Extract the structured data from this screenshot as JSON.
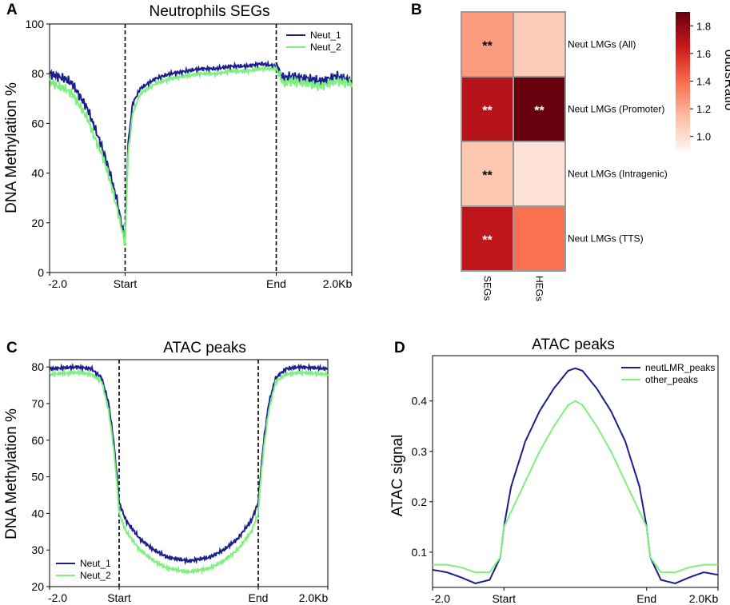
{
  "panel_letters": {
    "A": "A",
    "B": "B",
    "C": "C",
    "D": "D"
  },
  "chart_data": [
    {
      "id": "A",
      "type": "line",
      "title": "Neutrophils SEGs",
      "xlabel": "",
      "ylabel": "DNA Methylation %",
      "xlim": [
        0,
        400
      ],
      "ylim": [
        0,
        100
      ],
      "yticks": [
        0,
        20,
        40,
        60,
        80,
        100
      ],
      "xticks": [
        {
          "x": 0,
          "label": "-2.0"
        },
        {
          "x": 100,
          "label": "Start"
        },
        {
          "x": 300,
          "label": "End"
        },
        {
          "x": 400,
          "label": "2.0Kb"
        }
      ],
      "vlines": [
        100,
        300
      ],
      "legend": "top-right",
      "series": [
        {
          "name": "Neut_1",
          "color": "#1a1f8c",
          "x": [
            0,
            10,
            20,
            30,
            40,
            50,
            60,
            70,
            80,
            90,
            98,
            100,
            104,
            110,
            120,
            140,
            160,
            180,
            200,
            220,
            240,
            260,
            280,
            300,
            310,
            320,
            340,
            360,
            380,
            400
          ],
          "values": [
            80,
            79,
            78,
            76,
            71,
            66,
            58,
            50,
            40,
            28,
            15,
            13,
            52,
            68,
            74,
            78,
            80,
            81,
            82,
            82,
            83,
            83,
            84,
            83,
            78,
            79,
            78,
            77,
            79,
            77
          ]
        },
        {
          "name": "Neut_2",
          "color": "#7ef07e",
          "x": [
            0,
            10,
            20,
            30,
            40,
            50,
            60,
            70,
            80,
            90,
            98,
            100,
            104,
            110,
            120,
            140,
            160,
            180,
            200,
            220,
            240,
            260,
            280,
            300,
            310,
            320,
            340,
            360,
            380,
            400
          ],
          "values": [
            77,
            75,
            74,
            72,
            67,
            62,
            54,
            47,
            37,
            25,
            14,
            12,
            48,
            64,
            72,
            76,
            78,
            79,
            80,
            80,
            81,
            81,
            82,
            82,
            76,
            77,
            76,
            75,
            77,
            76
          ]
        }
      ]
    },
    {
      "id": "B",
      "type": "heatmap",
      "rows": [
        "Neut LMGs (All)",
        "Neut LMGs (Promoter)",
        "Neut LMGs (Intragenic)",
        "Neut LMGs (TTS)"
      ],
      "columns": [
        "SEGs",
        "HEGs"
      ],
      "values": [
        [
          1.25,
          1.08
        ],
        [
          1.7,
          1.9
        ],
        [
          1.1,
          0.98
        ],
        [
          1.68,
          1.38
        ]
      ],
      "annotations": [
        [
          "**",
          ""
        ],
        [
          "**",
          "**"
        ],
        [
          "**",
          ""
        ],
        [
          "**",
          ""
        ]
      ],
      "colorbar": {
        "label": "oddsRatio",
        "min": 0.9,
        "max": 1.9,
        "ticks": [
          1.0,
          1.2,
          1.4,
          1.6,
          1.8
        ]
      }
    },
    {
      "id": "C",
      "type": "line",
      "title": "ATAC peaks",
      "xlabel": "",
      "ylabel": "DNA Methylation %",
      "xlim": [
        0,
        400
      ],
      "ylim": [
        20,
        82
      ],
      "yticks": [
        20,
        30,
        40,
        50,
        60,
        70,
        80
      ],
      "xticks": [
        {
          "x": 0,
          "label": "-2.0"
        },
        {
          "x": 100,
          "label": "Start"
        },
        {
          "x": 300,
          "label": "End"
        },
        {
          "x": 400,
          "label": "2.0Kb"
        }
      ],
      "vlines": [
        100,
        300
      ],
      "legend": "bottom-left",
      "series": [
        {
          "name": "Neut_1",
          "color": "#1a1f8c",
          "x": [
            0,
            40,
            60,
            75,
            85,
            92,
            97,
            100,
            110,
            130,
            150,
            170,
            200,
            230,
            250,
            270,
            290,
            300,
            303,
            308,
            315,
            325,
            340,
            360,
            400
          ],
          "values": [
            79.5,
            80,
            79.5,
            77,
            70,
            60,
            50,
            43,
            38,
            33,
            30,
            28,
            27,
            28,
            30,
            33,
            38,
            43,
            50,
            60,
            70,
            77,
            79.5,
            80,
            79.5
          ]
        },
        {
          "name": "Neut_2",
          "color": "#7ef07e",
          "x": [
            0,
            40,
            60,
            75,
            85,
            92,
            97,
            100,
            110,
            130,
            150,
            170,
            200,
            230,
            250,
            270,
            290,
            300,
            303,
            308,
            315,
            325,
            340,
            360,
            400
          ],
          "values": [
            78,
            78.5,
            78,
            76,
            68,
            58,
            48,
            40,
            35,
            30,
            27,
            25,
            24,
            25,
            27,
            30,
            35,
            40,
            48,
            58,
            68,
            76,
            78,
            78.5,
            78
          ]
        }
      ]
    },
    {
      "id": "D",
      "type": "line",
      "title": "ATAC peaks",
      "xlabel": "",
      "ylabel": "ATAC signal",
      "xlim": [
        0,
        400
      ],
      "ylim": [
        0.03,
        0.49
      ],
      "yticks": [
        0.1,
        0.2,
        0.3,
        0.4
      ],
      "xticks": [
        {
          "x": 0,
          "label": "-2.0"
        },
        {
          "x": 100,
          "label": "Start"
        },
        {
          "x": 300,
          "label": "End"
        },
        {
          "x": 400,
          "label": "2.0Kb"
        }
      ],
      "vlines": [],
      "legend": "top-right",
      "series": [
        {
          "name": "neutLMR_peaks",
          "color": "#1a1f8c",
          "x": [
            0,
            20,
            40,
            60,
            80,
            95,
            100,
            110,
            130,
            150,
            170,
            190,
            200,
            210,
            230,
            250,
            270,
            290,
            300,
            305,
            320,
            340,
            360,
            380,
            400
          ],
          "values": [
            0.065,
            0.06,
            0.05,
            0.038,
            0.045,
            0.09,
            0.15,
            0.23,
            0.32,
            0.38,
            0.425,
            0.46,
            0.465,
            0.46,
            0.425,
            0.38,
            0.32,
            0.23,
            0.15,
            0.09,
            0.045,
            0.038,
            0.05,
            0.06,
            0.055
          ]
        },
        {
          "name": "other_peaks",
          "color": "#7ef07e",
          "x": [
            0,
            20,
            40,
            60,
            80,
            95,
            100,
            110,
            130,
            150,
            170,
            190,
            200,
            210,
            230,
            250,
            270,
            290,
            300,
            305,
            320,
            340,
            360,
            380,
            400
          ],
          "values": [
            0.075,
            0.075,
            0.07,
            0.06,
            0.06,
            0.09,
            0.15,
            0.18,
            0.24,
            0.3,
            0.35,
            0.392,
            0.4,
            0.392,
            0.35,
            0.3,
            0.24,
            0.18,
            0.15,
            0.09,
            0.06,
            0.06,
            0.07,
            0.075,
            0.075
          ]
        }
      ]
    }
  ]
}
